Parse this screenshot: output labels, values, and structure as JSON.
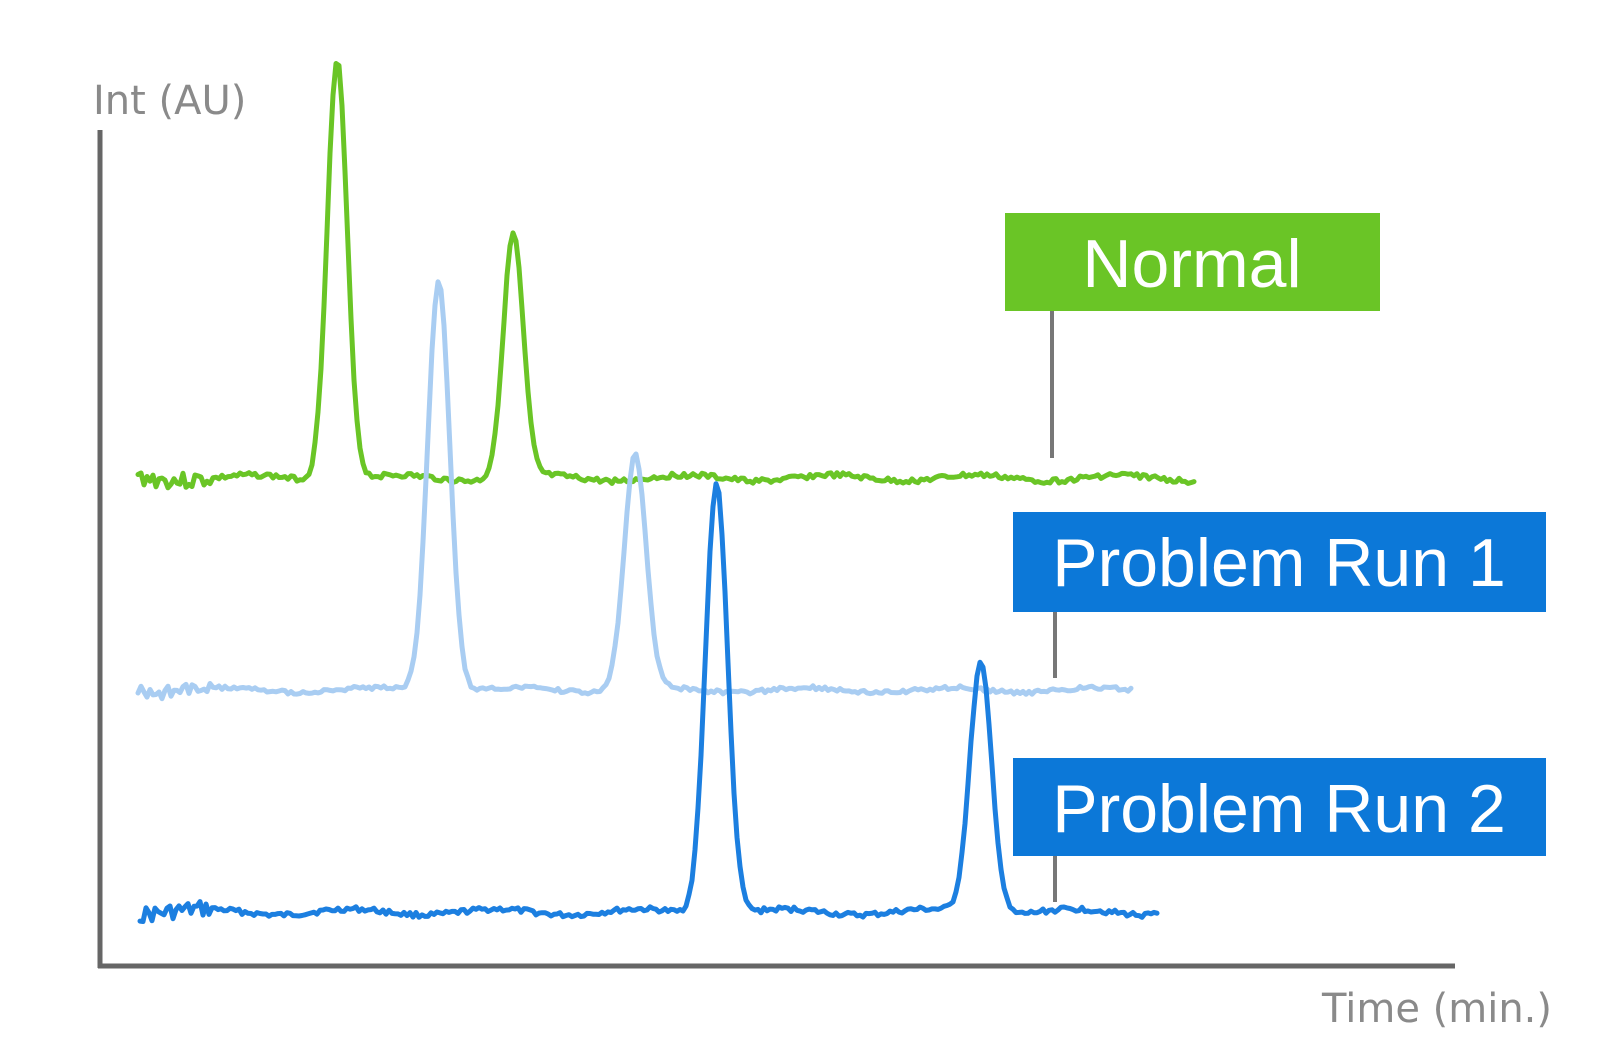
{
  "chart_data": {
    "type": "line",
    "title": "",
    "xlabel": "Time (min.)",
    "ylabel": "Int (AU)",
    "grid": false,
    "legend": "inline labels on the right",
    "series": [
      {
        "name": "Normal",
        "color": "#6ac526",
        "label_fill": "#6ac526",
        "peaks": [
          {
            "position": 0.175,
            "height": 1.0
          },
          {
            "position": 0.305,
            "height": 0.58
          }
        ]
      },
      {
        "name": "Problem Run 1",
        "color": "#a9cdf2",
        "label_fill": "#0c78d8",
        "peaks": [
          {
            "position": 0.25,
            "height": 0.98
          },
          {
            "position": 0.395,
            "height": 0.56
          }
        ]
      },
      {
        "name": "Problem Run 2",
        "color": "#1c7fe0",
        "label_fill": "#0c78d8",
        "peaks": [
          {
            "position": 0.455,
            "height": 1.0
          },
          {
            "position": 0.65,
            "height": 0.58
          }
        ]
      }
    ]
  }
}
